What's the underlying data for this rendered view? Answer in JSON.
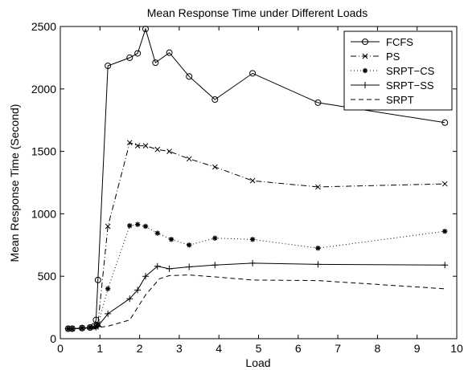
{
  "chart_data": {
    "type": "line",
    "title": "Mean Response Time under Different Loads",
    "xlabel": "Load",
    "ylabel": "Mean Response Time (Second)",
    "xlim": [
      0,
      10
    ],
    "ylim": [
      0,
      2500
    ],
    "xticks": [
      0,
      1,
      2,
      3,
      4,
      5,
      6,
      7,
      8,
      9,
      10
    ],
    "yticks": [
      0,
      500,
      1000,
      1500,
      2000,
      2500
    ],
    "grid": false,
    "legend_position": "top-right",
    "series": [
      {
        "name": "FCFS",
        "line": "solid",
        "marker": "circle",
        "x": [
          0.2,
          0.3,
          0.55,
          0.75,
          0.85,
          0.9,
          0.95,
          1.2,
          1.75,
          1.95,
          2.15,
          2.4,
          2.75,
          3.25,
          3.9,
          4.85,
          6.5,
          9.7
        ],
        "y": [
          80,
          80,
          85,
          90,
          100,
          150,
          470,
          2185,
          2250,
          2285,
          2480,
          2210,
          2290,
          2100,
          1915,
          2125,
          1890,
          1730
        ]
      },
      {
        "name": "PS",
        "line": "dashdot",
        "marker": "x",
        "x": [
          0.2,
          0.3,
          0.55,
          0.75,
          0.9,
          0.95,
          1.2,
          1.75,
          1.95,
          2.15,
          2.45,
          2.75,
          3.25,
          3.9,
          4.85,
          6.5,
          9.7
        ],
        "y": [
          80,
          80,
          85,
          90,
          95,
          120,
          900,
          1570,
          1545,
          1545,
          1515,
          1500,
          1440,
          1375,
          1265,
          1215,
          1240
        ]
      },
      {
        "name": "SRPT−CS",
        "line": "dotted",
        "marker": "star",
        "x": [
          0.2,
          0.3,
          0.55,
          0.75,
          0.9,
          0.95,
          1.2,
          1.75,
          1.95,
          2.15,
          2.45,
          2.8,
          3.25,
          3.9,
          4.85,
          6.5,
          9.7
        ],
        "y": [
          80,
          80,
          85,
          90,
          95,
          110,
          400,
          905,
          915,
          900,
          845,
          795,
          750,
          805,
          795,
          725,
          860
        ]
      },
      {
        "name": "SRPT−SS",
        "line": "solid",
        "marker": "plus",
        "x": [
          0.2,
          0.3,
          0.55,
          0.75,
          0.9,
          0.95,
          1.2,
          1.75,
          1.95,
          2.15,
          2.45,
          2.75,
          3.25,
          3.9,
          4.85,
          6.5,
          9.7
        ],
        "y": [
          80,
          80,
          85,
          88,
          92,
          100,
          200,
          320,
          390,
          500,
          580,
          560,
          575,
          590,
          605,
          595,
          590
        ]
      },
      {
        "name": "SRPT",
        "line": "dashed",
        "marker": "none",
        "x": [
          0.2,
          0.55,
          0.9,
          1.2,
          1.75,
          2.15,
          2.5,
          2.75,
          3.25,
          3.9,
          4.85,
          6.5,
          9.7
        ],
        "y": [
          80,
          82,
          88,
          100,
          150,
          350,
          480,
          505,
          510,
          495,
          470,
          465,
          400
        ]
      }
    ]
  }
}
